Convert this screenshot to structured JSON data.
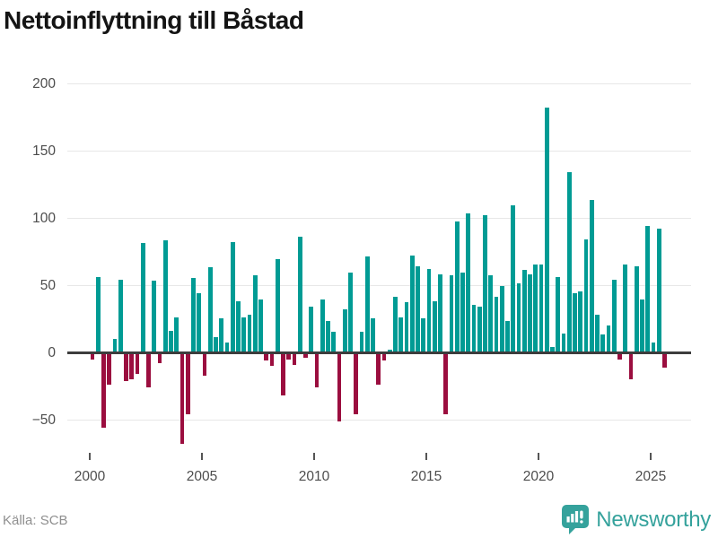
{
  "title": "Nettoinflyttning till Båstad",
  "source": "Källa: SCB",
  "brand": {
    "name": "Newsworthy"
  },
  "colors": {
    "positive": "#009B94",
    "negative": "#9B0E3F",
    "grid": "#E7E7E7",
    "axis": "#3D3D3D",
    "tick": "#555555",
    "label": "#4D4D4D",
    "title": "#141414",
    "source_text": "#8F8F8F",
    "brand_teal": "#35A29C",
    "background": "#FFFFFF"
  },
  "chart_data": {
    "type": "bar",
    "title": "Nettoinflyttning till Båstad",
    "frequency": "quarterly",
    "period_start": "2000 Q1",
    "period_end": "2025 Q3",
    "series_name": "Nettoinflyttning",
    "values": [
      -4,
      56,
      -55,
      -23,
      10,
      54,
      -20,
      -19,
      -15,
      81,
      -25,
      53,
      -7,
      83,
      16,
      26,
      -67,
      -45,
      55,
      44,
      -16,
      63,
      11,
      25,
      7,
      82,
      38,
      26,
      28,
      57,
      39,
      -5,
      -9,
      69,
      -31,
      -4,
      -8,
      86,
      -3,
      34,
      -25,
      39,
      23,
      15,
      -50,
      32,
      59,
      -45,
      15,
      71,
      25,
      -23,
      -5,
      2,
      41,
      26,
      37,
      72,
      64,
      25,
      62,
      38,
      58,
      -45,
      57,
      97,
      59,
      103,
      35,
      34,
      102,
      57,
      41,
      49,
      23,
      109,
      51,
      61,
      58,
      65,
      65,
      182,
      4,
      56,
      14,
      134,
      44,
      45,
      84,
      113,
      28,
      13,
      20,
      54,
      -4,
      65,
      -19,
      64,
      39,
      94,
      7,
      92,
      -10
    ],
    "y_ticks": [
      {
        "label": "200",
        "value": 200
      },
      {
        "label": "150",
        "value": 150
      },
      {
        "label": "100",
        "value": 100
      },
      {
        "label": "50",
        "value": 50
      },
      {
        "label": "0",
        "value": 0
      },
      {
        "label": "−50",
        "value": -50
      }
    ],
    "x_ticks": [
      {
        "label": "2000",
        "value": 2000
      },
      {
        "label": "2005",
        "value": 2005
      },
      {
        "label": "2010",
        "value": 2010
      },
      {
        "label": "2015",
        "value": 2015
      },
      {
        "label": "2020",
        "value": 2020
      },
      {
        "label": "2025",
        "value": 2025
      }
    ],
    "ylim": [
      -75,
      210
    ],
    "grid": true,
    "legend": false
  }
}
